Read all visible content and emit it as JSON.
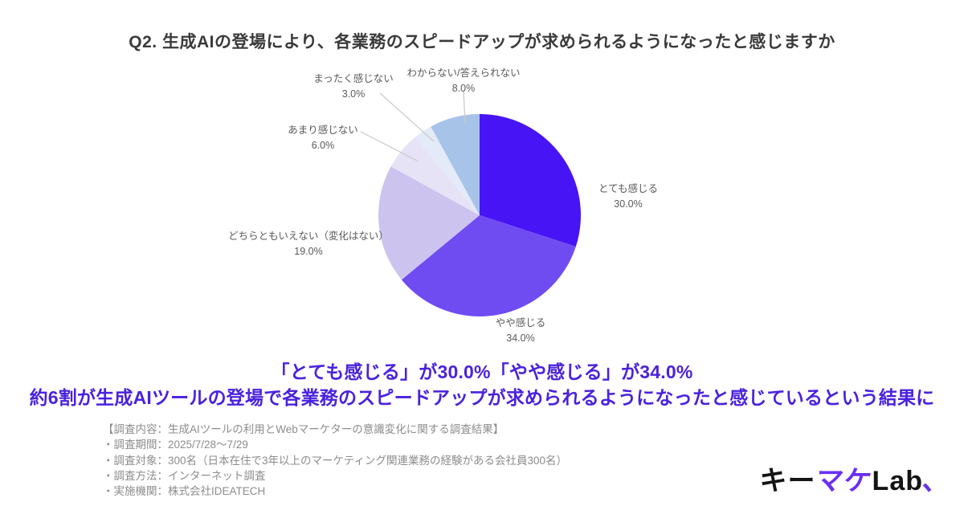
{
  "chart_data": {
    "type": "pie",
    "title": "Q2. 生成AIの登場により、各業務のスピードアップが求められるようになったと感じますか",
    "unit": "%",
    "direction": "clockwise",
    "start_angle_deg": 0,
    "legend": "none",
    "label_style": "outside-with-leader-lines",
    "slices": [
      {
        "label": "とても感じる",
        "value": 30.0,
        "pct_label": "30.0%",
        "color": "#4714F5"
      },
      {
        "label": "やや感じる",
        "value": 34.0,
        "pct_label": "34.0%",
        "color": "#6F4BF2"
      },
      {
        "label": "どちらともいえない（変化はない）",
        "value": 19.0,
        "pct_label": "19.0%",
        "color": "#CCC3EE"
      },
      {
        "label": "あまり感じない",
        "value": 6.0,
        "pct_label": "6.0%",
        "color": "#E6E3F6"
      },
      {
        "label": "まったく感じない",
        "value": 3.0,
        "pct_label": "3.0%",
        "color": "#E3EAF8"
      },
      {
        "label": "わからない/答えられない",
        "value": 8.0,
        "pct_label": "8.0%",
        "color": "#A8C3E8"
      }
    ],
    "leader_line_color": "#c9c9c9"
  },
  "headline": {
    "line1": "「とても感じる」が30.0%「やや感じる」が34.0%",
    "line2": "約6割が生成AIツールの登場で各業務のスピードアップが求められるようになったと感じているという結果に",
    "color": "#4A21DF"
  },
  "survey_notes": {
    "lines": [
      "【調査内容：生成AIツールの利用とWebマーケターの意識変化に関する調査結果】",
      "・調査期間：2025/7/28〜7/29",
      "・調査対象：300名（日本在住で3年以上のマーケティング関連業務の経験がある会社員300名）",
      "・調査方法：インターネット調査",
      "・実施機関：株式会社IDEATECH"
    ],
    "text_color": "#8c8c8c"
  },
  "logo": {
    "part1": "キー",
    "part2": "マケ",
    "part3": "Lab",
    "mark": "、",
    "accent_color": "#6A2FF5",
    "text_color": "#141414"
  }
}
